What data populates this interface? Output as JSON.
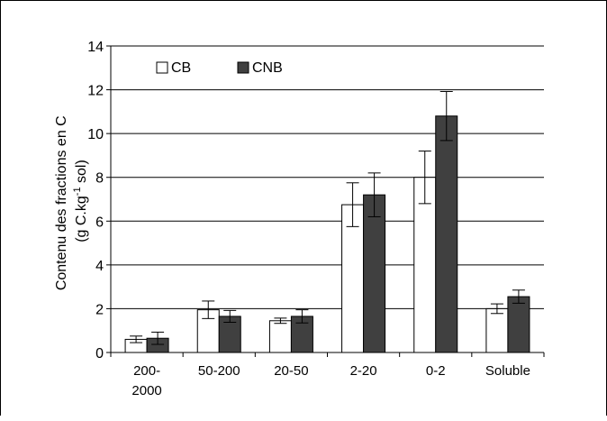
{
  "chart_data": {
    "type": "bar",
    "categories": [
      [
        "200-",
        "2000"
      ],
      [
        "50-200"
      ],
      [
        "20-50"
      ],
      [
        "2-20"
      ],
      [
        "0-2"
      ],
      [
        "Soluble"
      ]
    ],
    "series": [
      {
        "name": "CB",
        "color": "#ffffff",
        "values": [
          0.6,
          1.95,
          1.45,
          6.75,
          8.0,
          2.0
        ],
        "errors": [
          0.15,
          0.4,
          0.12,
          1.0,
          1.2,
          0.22
        ]
      },
      {
        "name": "CNB",
        "color": "#404040",
        "values": [
          0.65,
          1.65,
          1.65,
          7.2,
          10.8,
          2.55
        ],
        "errors": [
          0.28,
          0.27,
          0.3,
          1.0,
          1.12,
          0.3
        ]
      }
    ],
    "ylabel_line1": "Contenu des fractions en C",
    "ylabel_line2_pre": "(g C.kg",
    "ylabel_line2_sup": "-1",
    "ylabel_line2_post": " sol)",
    "ylim": [
      0,
      14
    ],
    "yticks": [
      "0",
      "2",
      "4",
      "6",
      "8",
      "10",
      "12",
      "14"
    ],
    "grid": true,
    "legend_position": "top-left"
  }
}
